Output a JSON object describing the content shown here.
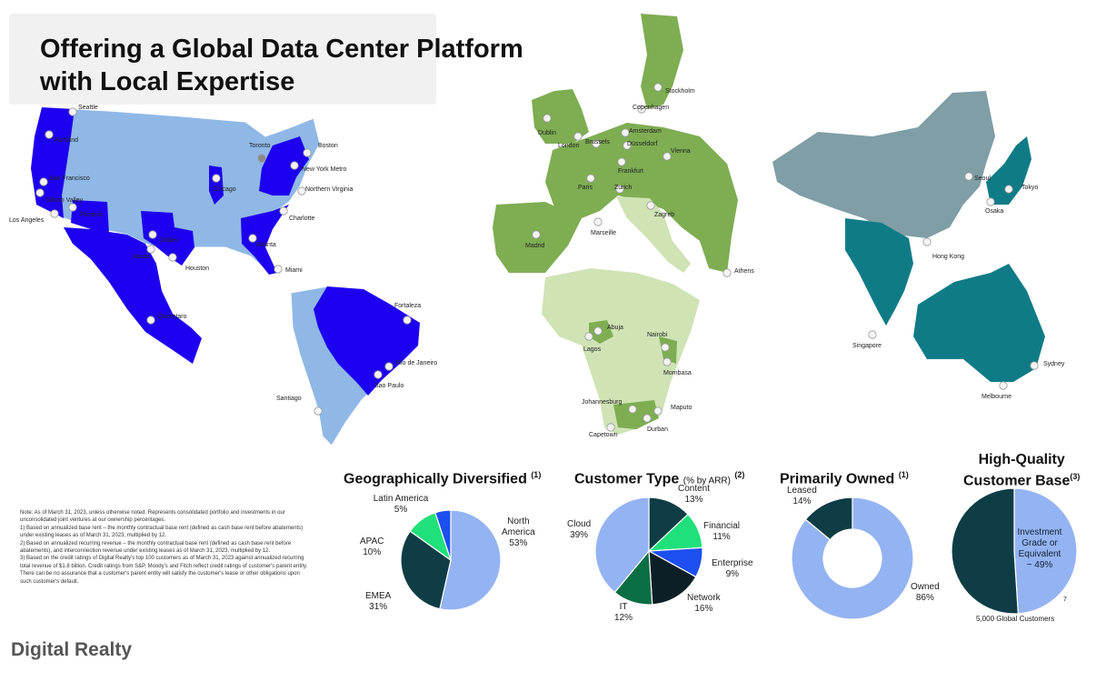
{
  "slide": {
    "title": "Offering a Global Data Center Platform\nwith Local Expertise",
    "footer_brand": "Digital Realty"
  },
  "map": {
    "colors": {
      "americas_dark": "#1e00f0",
      "americas_light": "#8fb8e6",
      "europe": "#7ead52",
      "italy_africa": "#cfe3b5",
      "asia_grey": "#7f9ea6",
      "asia_teal": "#0f7b86"
    },
    "cities": [
      "Seattle",
      "Portland",
      "San Francisco",
      "Silicon Valley",
      "Los Angeles",
      "Phoenix",
      "Dallas",
      "Austin",
      "Houston",
      "Chicago",
      "Toronto",
      "Boston",
      "New York Metro",
      "Northern Virginia",
      "Charlotte",
      "Atlanta",
      "Miami",
      "Queretaro",
      "Fortaleza",
      "Rio de Janeiro",
      "Sao Paulo",
      "Santiago",
      "Stockholm",
      "Copenhagen",
      "Dublin",
      "Amsterdam",
      "Brussels",
      "Düsseldorf",
      "London",
      "Frankfurt",
      "Vienna",
      "Paris",
      "Zurich",
      "Zagreb",
      "Marseille",
      "Madrid",
      "Athens",
      "Abuja",
      "Lagos",
      "Nairobi",
      "Mombasa",
      "Johannesburg",
      "Maputo",
      "Durban",
      "Capetown",
      "Seoul",
      "Tokyo",
      "Osaka",
      "Hong Kong",
      "Singapore",
      "Sydney",
      "Melbourne"
    ]
  },
  "footnotes": [
    "Note: As of March 31, 2023, unless otherwise noted. Represents consolidated portfolio and investments in our unconsolidated joint ventures at our ownership percentages.",
    "1) Based on annualized base rent – the monthly contractual base rent (defined as cash base rent before abatements) under existing leases as of March 31, 2023, multiplied by 12.",
    "2) Based on annualized recurring revenue – the monthly contractual base rent (defined as cash base rent before abatements), and interconnection revenue under existing leases as of March 31, 2023, multiplied by 12.",
    "3) Based on the credit ratings of Digital Realty's top 100 customers as of March 31, 2023 against annualized recurring total revenue of $1.8 billion. Credit ratings from S&P, Moody's and Fitch reflect credit ratings of customer's parent entity. There can be no assurance that a customer's parent entity will satisfy the customer's lease or other obligations upon such customer's default."
  ],
  "charts": {
    "geo": {
      "title": "Geographically Diversified",
      "note": "(1)"
    },
    "customer": {
      "title": "Customer Type",
      "unit": "(% by ARR)",
      "note": "(2)"
    },
    "owned": {
      "title": "Primarily Owned",
      "note": "(1)"
    },
    "quality": {
      "title": "High-Quality\nCustomer Base",
      "note": "(3)",
      "footer": "5,000 Global Customers",
      "corner_mark": "7"
    }
  },
  "chart_data": [
    {
      "type": "pie",
      "title": "Geographically Diversified",
      "categories": [
        "North America",
        "EMEA",
        "APAC",
        "Latin America"
      ],
      "values": [
        53,
        31,
        10,
        5
      ],
      "labels": [
        "North\nAmerica\n53%",
        "EMEA\n31%",
        "APAC\n10%",
        "Latin America\n5%"
      ],
      "colors": [
        "#94b3f2",
        "#0f3d45",
        "#1fe07a",
        "#1e4ff0"
      ]
    },
    {
      "type": "pie",
      "title": "Customer Type (% by ARR)",
      "categories": [
        "Content",
        "Financial",
        "Enterprise",
        "Network",
        "IT",
        "Cloud"
      ],
      "values": [
        13,
        11,
        9,
        16,
        12,
        39
      ],
      "labels": [
        "Content\n13%",
        "Financial\n11%",
        "Enterprise\n9%",
        "Network\n16%",
        "IT\n12%",
        "Cloud\n39%"
      ],
      "colors": [
        "#0f3d45",
        "#1fe07a",
        "#1e4ff0",
        "#0d1f26",
        "#0a6e45",
        "#94b3f2"
      ]
    },
    {
      "type": "pie",
      "title": "Primarily Owned",
      "categories": [
        "Leased",
        "Owned"
      ],
      "values": [
        14,
        86
      ],
      "labels": [
        "Leased\n14%",
        "Owned\n86%"
      ],
      "colors": [
        "#0f3d45",
        "#94b3f2"
      ]
    },
    {
      "type": "pie",
      "title": "High-Quality Customer Base",
      "categories": [
        "Investment Grade or Equivalent",
        "Other"
      ],
      "values": [
        49,
        51
      ],
      "labels": [
        "Investment\nGrade or\nEquivalent\n~ 49%",
        ""
      ],
      "colors": [
        "#94b3f2",
        "#0f3d45"
      ]
    }
  ]
}
